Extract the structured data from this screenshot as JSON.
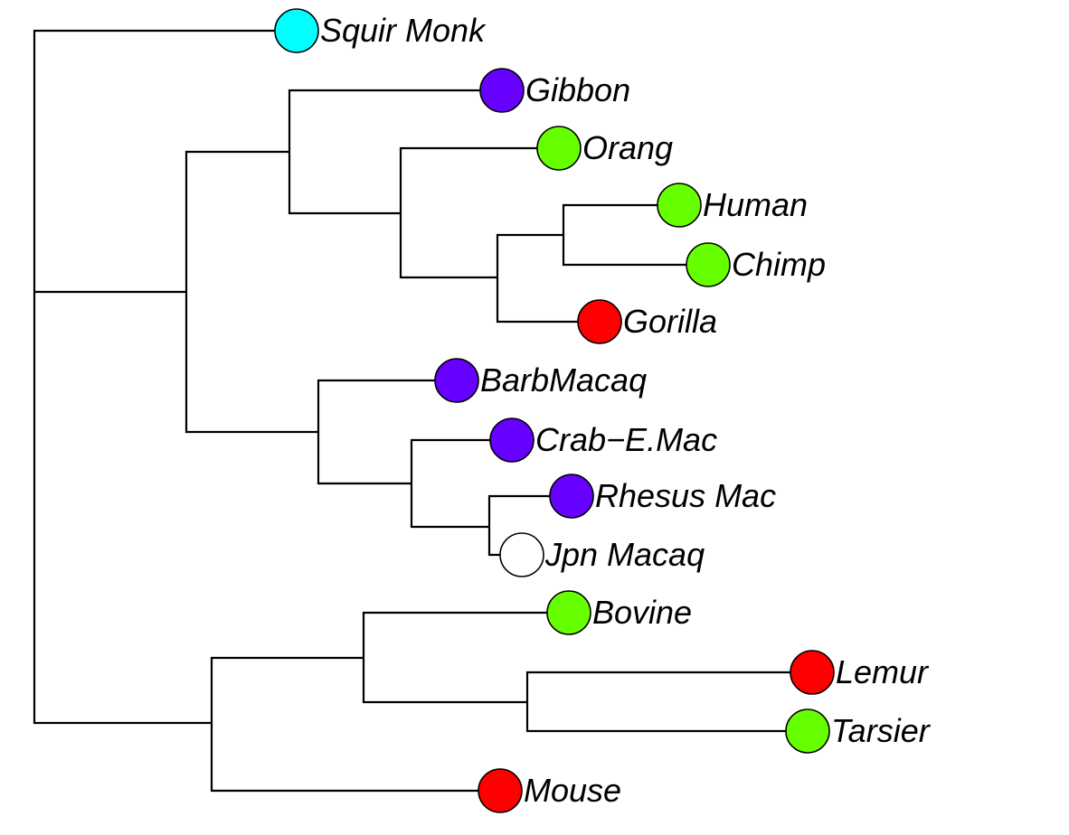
{
  "tree": {
    "branches": [
      {
        "name": "root-to-squir-monk"
      },
      {
        "name": "root-to-ingroup"
      },
      {
        "name": "root-to-outgroup"
      },
      {
        "name": "ingroup-to-apes"
      },
      {
        "name": "ingroup-to-macaques"
      },
      {
        "name": "apes-to-gibbon"
      },
      {
        "name": "apes-to-great-apes"
      },
      {
        "name": "great-apes-to-orang"
      },
      {
        "name": "great-apes-to-african-apes"
      },
      {
        "name": "african-apes-to-human-chimp"
      },
      {
        "name": "african-apes-to-gorilla"
      },
      {
        "name": "human-chimp-to-human"
      },
      {
        "name": "human-chimp-to-chimp"
      },
      {
        "name": "macaques-to-barbmacaq"
      },
      {
        "name": "macaques-to-asian-macaques"
      },
      {
        "name": "asian-macaques-to-crab"
      },
      {
        "name": "asian-macaques-to-rhesus-jpn"
      },
      {
        "name": "rhesus-jpn-to-rhesus"
      },
      {
        "name": "rhesus-jpn-to-jpn"
      },
      {
        "name": "outgroup-to-bov-lem-tar"
      },
      {
        "name": "outgroup-to-mouse"
      },
      {
        "name": "bov-lem-tar-to-bovine"
      },
      {
        "name": "bov-lem-tar-to-lemur-tarsier"
      },
      {
        "name": "lemur-tarsier-to-lemur"
      },
      {
        "name": "lemur-tarsier-to-tarsier"
      }
    ],
    "tips": [
      {
        "label": "Squir Monk",
        "color": "#00FFFF"
      },
      {
        "label": "Gibbon",
        "color": "#6600FF"
      },
      {
        "label": "Orang",
        "color": "#66FF00"
      },
      {
        "label": "Human",
        "color": "#66FF00"
      },
      {
        "label": "Chimp",
        "color": "#66FF00"
      },
      {
        "label": "Gorilla",
        "color": "#FF0000"
      },
      {
        "label": "BarbMacaq",
        "color": "#6600FF"
      },
      {
        "label": "Crab−E.Mac",
        "color": "#6600FF"
      },
      {
        "label": "Rhesus Mac",
        "color": "#6600FF"
      },
      {
        "label": "Jpn Macaq",
        "color": "#FFFFFF"
      },
      {
        "label": "Bovine",
        "color": "#66FF00"
      },
      {
        "label": "Lemur",
        "color": "#FF0000"
      },
      {
        "label": "Tarsier",
        "color": "#66FF00"
      },
      {
        "label": "Mouse",
        "color": "#FF0000"
      }
    ]
  }
}
